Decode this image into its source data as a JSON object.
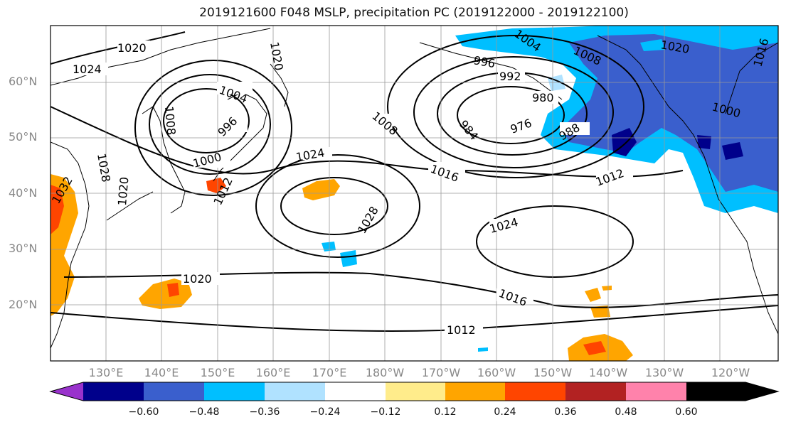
{
  "title": "2019121600 F048 MSLP, precipitation PC (2019122000 - 2019122100)",
  "lat_labels": [
    "60°N",
    "50°N",
    "40°N",
    "30°N",
    "20°N"
  ],
  "lon_labels": [
    "130°E",
    "140°E",
    "150°E",
    "160°E",
    "170°E",
    "180°W",
    "170°W",
    "160°W",
    "150°W",
    "140°W",
    "130°W",
    "120°W"
  ],
  "isobar_labels": [
    {
      "text": "1020"
    },
    {
      "text": "1024"
    },
    {
      "text": "1020"
    },
    {
      "text": "1004"
    },
    {
      "text": "1008"
    },
    {
      "text": "996"
    },
    {
      "text": "1000"
    },
    {
      "text": "1012"
    },
    {
      "text": "1028"
    },
    {
      "text": "1020"
    },
    {
      "text": "1032"
    },
    {
      "text": "1008"
    },
    {
      "text": "1016"
    },
    {
      "text": "1024"
    },
    {
      "text": "1028"
    },
    {
      "text": "1020"
    },
    {
      "text": "996"
    },
    {
      "text": "992"
    },
    {
      "text": "1004"
    },
    {
      "text": "1008"
    },
    {
      "text": "980"
    },
    {
      "text": "984"
    },
    {
      "text": "976"
    },
    {
      "text": "988"
    },
    {
      "text": "1012"
    },
    {
      "text": "1024"
    },
    {
      "text": "1016"
    },
    {
      "text": "1012"
    },
    {
      "text": "1020"
    },
    {
      "text": "1000"
    },
    {
      "text": "1016"
    }
  ],
  "colorbar": {
    "ticks": [
      "−0.60",
      "−0.48",
      "−0.36",
      "−0.24",
      "−0.12",
      "0.12",
      "0.24",
      "0.36",
      "0.48",
      "0.60"
    ],
    "colors": [
      "#9932cc",
      "#00008b",
      "#3a5fcd",
      "#00bfff",
      "#b0e2ff",
      "#ffffff",
      "#ffec8b",
      "#ffa500",
      "#ff4500",
      "#b22222",
      "#ff82ab"
    ]
  }
}
